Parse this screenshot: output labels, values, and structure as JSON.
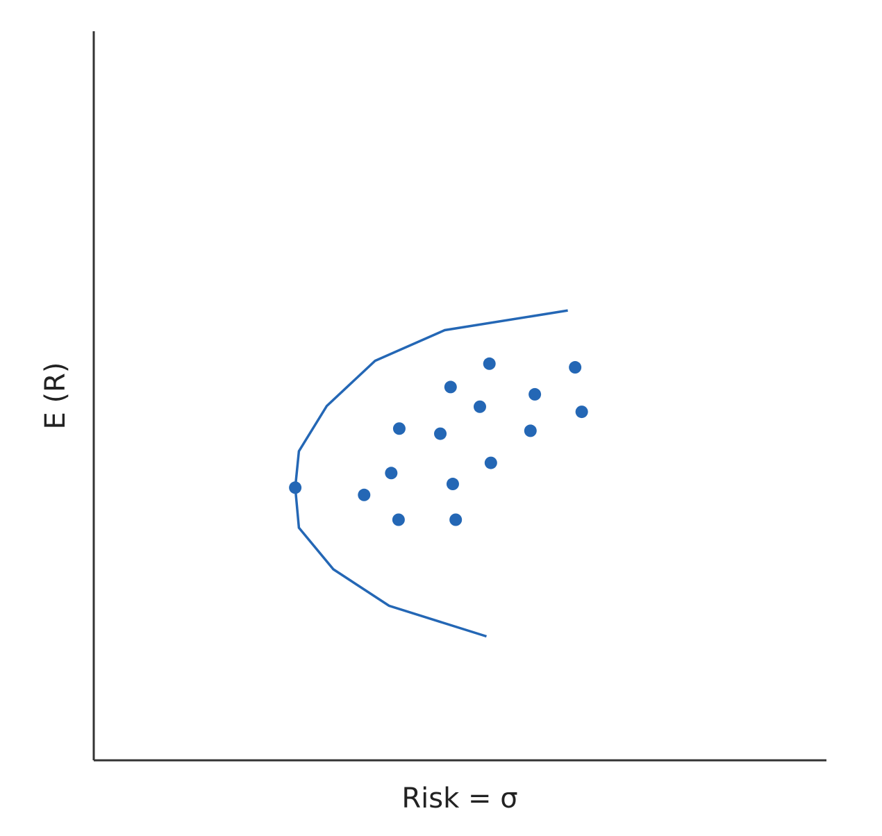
{
  "chart_data": {
    "type": "scatter",
    "x_label": "Risk = σ",
    "y_label": "E (R)",
    "xlim": [
      0,
      100
    ],
    "ylim": [
      0,
      100
    ],
    "series": [
      {
        "type": "line",
        "color": "#2467b5",
        "x": [
          64.7,
          47.9,
          38.4,
          31.8,
          28.0,
          27.5,
          28.0,
          32.7,
          40.3,
          53.6
        ],
        "values": [
          61.7,
          59.0,
          54.8,
          48.6,
          42.4,
          37.4,
          31.9,
          26.2,
          21.2,
          17.0
        ]
      },
      {
        "type": "scatter",
        "color": "#2467b5",
        "x": [
          27.5,
          36.9,
          40.6,
          41.7,
          41.6,
          47.3,
          48.7,
          49.0,
          49.4,
          52.7,
          54.0,
          54.2,
          59.6,
          60.2,
          65.7,
          66.6
        ],
        "values": [
          37.4,
          36.4,
          39.4,
          45.5,
          33.0,
          44.8,
          51.2,
          37.9,
          33.0,
          48.5,
          54.4,
          40.8,
          45.2,
          50.2,
          53.9,
          47.8
        ]
      }
    ]
  }
}
